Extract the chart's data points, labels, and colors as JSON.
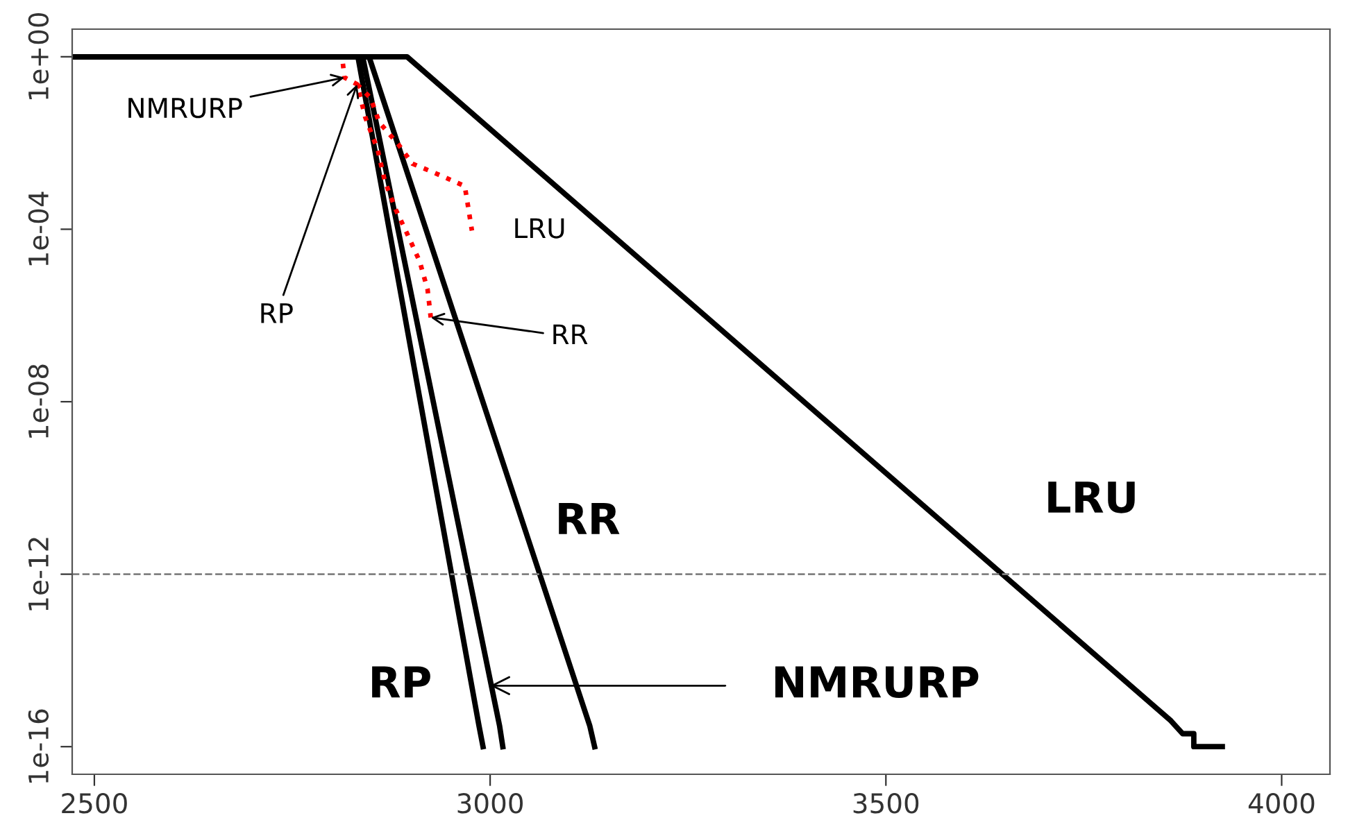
{
  "chart_data": {
    "type": "line",
    "log": "y",
    "xlim": [
      2472,
      4061
    ],
    "ylim": [
      2.29e-17,
      4.37
    ],
    "xticks": [
      2500,
      3000,
      3500,
      4000
    ],
    "yticks": [
      {
        "value": 1,
        "label": "1e+00"
      },
      {
        "value": 0.0001,
        "label": "1e-04"
      },
      {
        "value": 1e-08,
        "label": "1e-08"
      },
      {
        "value": 1e-12,
        "label": "1e-12"
      },
      {
        "value": 1e-16,
        "label": "1e-16"
      }
    ],
    "grid": false,
    "line_style": "solid",
    "marker": "none",
    "series": [
      {
        "color": "#000000",
        "x": [
          2472,
          2895,
          3860,
          3875,
          3889,
          3889,
          3925
        ],
        "values": [
          1,
          1,
          4e-16,
          2e-16,
          2e-16,
          1e-16,
          1e-16
        ]
      },
      {
        "color": "#000000",
        "x": [
          2472,
          2833,
          2986,
          2991
        ],
        "values": [
          1,
          1,
          3e-16,
          1e-16
        ]
      },
      {
        "color": "#000000",
        "x": [
          2472,
          2839,
          3012,
          3016
        ],
        "values": [
          1,
          1,
          3e-16,
          1e-16
        ]
      },
      {
        "color": "#000000",
        "x": [
          2472,
          2847,
          3126,
          3132
        ],
        "values": [
          1,
          1,
          3e-16,
          1e-16
        ]
      },
      {
        "color": "#ff0000",
        "line_style": "dotted",
        "x": [
          2814,
          2816,
          2832,
          2842,
          2858,
          2867,
          2881,
          2895,
          2911,
          2921,
          2925
        ],
        "values": [
          0.69,
          0.33,
          0.23,
          0.041,
          0.0069,
          0.0013,
          0.00028,
          8e-05,
          1.8e-05,
          4e-06,
          9e-07
        ]
      },
      {
        "color": "#ff0000",
        "line_style": "dotted",
        "x": [
          2832,
          2849,
          2860,
          2884,
          2902,
          2928,
          2968,
          2972,
          2977
        ],
        "values": [
          0.23,
          0.11,
          0.03,
          0.0093,
          0.0033,
          0.0021,
          0.001,
          0.00035,
          9.3e-05
        ]
      }
    ],
    "ref_lines": [
      {
        "axis": "y",
        "value": 1e-12,
        "color": "#808080",
        "line_style": "dashed"
      }
    ],
    "annotations": [
      {
        "text": "NMRURP",
        "x": 2816,
        "y": 0.33
      },
      {
        "text": "RP",
        "x": 2832,
        "y": 0.23
      },
      {
        "text": "LRU",
        "x": 2977,
        "y": 9.3e-05
      },
      {
        "text": "RR",
        "x": 2925,
        "y": 9e-07
      },
      {
        "text": "RR",
        "x": 3038,
        "y": 1.6e-11
      },
      {
        "text": "LRU",
        "x": 3560,
        "y": 2.2e-11
      },
      {
        "text": "RP",
        "x": 2974,
        "y": 2.6e-15
      },
      {
        "text": "NMRURP",
        "x": 3000,
        "y": 2.6e-15
      }
    ]
  }
}
